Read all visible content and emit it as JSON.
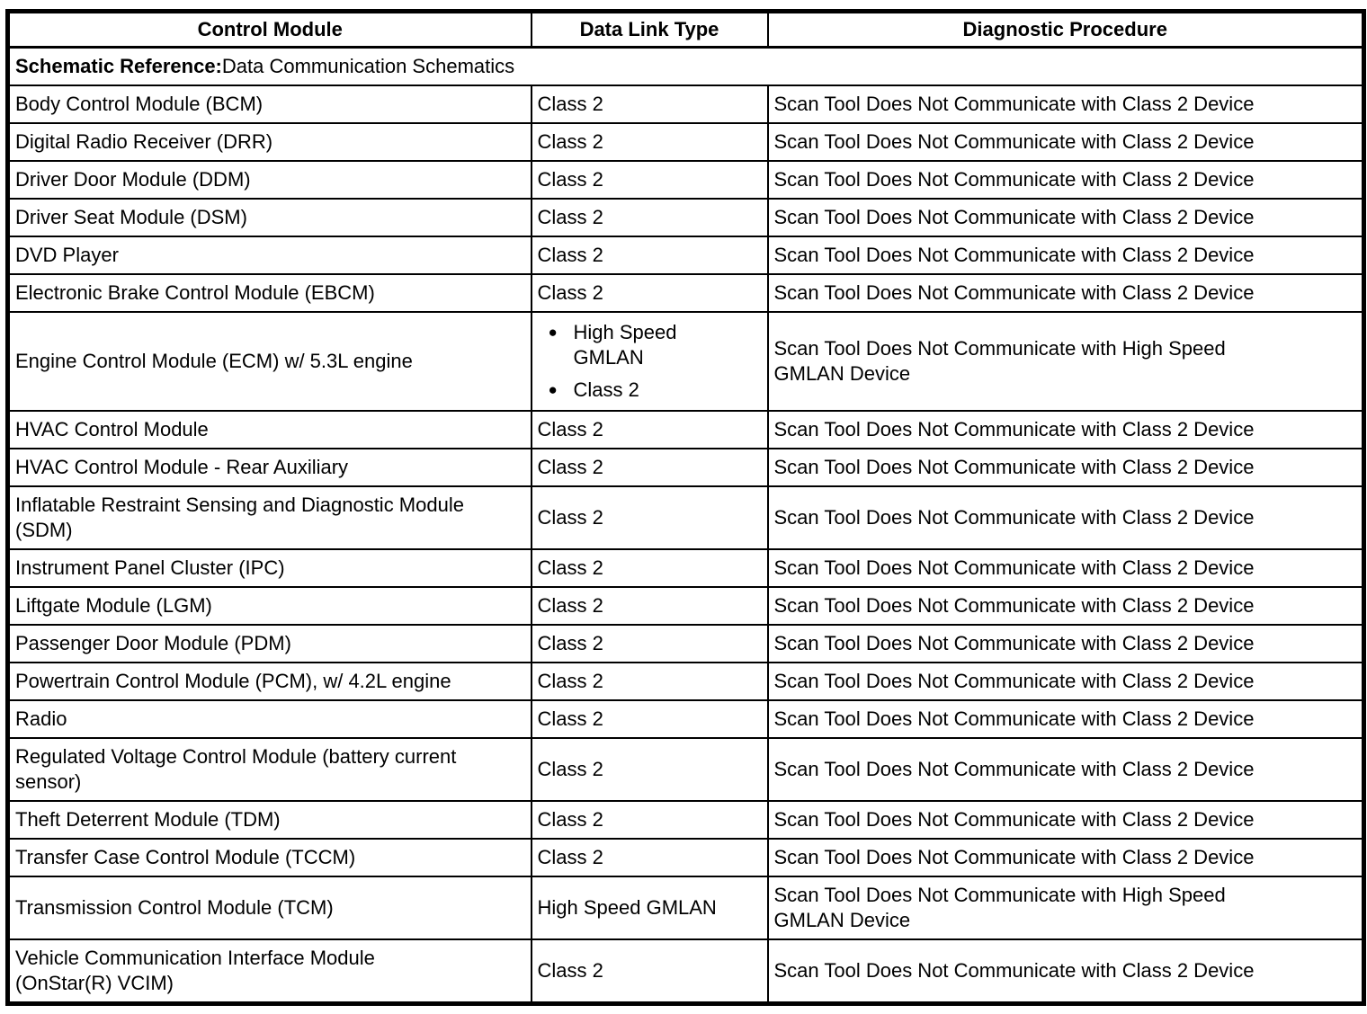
{
  "page": {
    "background_color": "#ffffff",
    "text_color": "#000000",
    "border_color": "#000000"
  },
  "table": {
    "headers": [
      "Control Module",
      "Data Link Type",
      "Diagnostic Procedure"
    ],
    "schematic_reference": {
      "label": "Schematic Reference:",
      "value": "Data Communication Schematics"
    },
    "rows": [
      {
        "module": "Body Control Module (BCM)",
        "data_link": [
          "Class 2"
        ],
        "procedure": "Scan Tool Does Not Communicate with Class 2 Device"
      },
      {
        "module": "Digital Radio Receiver (DRR)",
        "data_link": [
          "Class 2"
        ],
        "procedure": "Scan Tool Does Not Communicate with Class 2 Device"
      },
      {
        "module": "Driver Door Module (DDM)",
        "data_link": [
          "Class 2"
        ],
        "procedure": "Scan Tool Does Not Communicate with Class 2 Device"
      },
      {
        "module": "Driver Seat Module (DSM)",
        "data_link": [
          "Class 2"
        ],
        "procedure": "Scan Tool Does Not Communicate with Class 2 Device"
      },
      {
        "module": "DVD Player",
        "data_link": [
          "Class 2"
        ],
        "procedure": "Scan Tool Does Not Communicate with Class 2 Device"
      },
      {
        "module": "Electronic Brake Control Module (EBCM)",
        "data_link": [
          "Class 2"
        ],
        "procedure": "Scan Tool Does Not Communicate with Class 2 Device"
      },
      {
        "module": "Engine Control Module (ECM) w/ 5.3L engine",
        "data_link": [
          "High Speed\nGMLAN",
          "Class 2"
        ],
        "procedure": "Scan Tool Does Not Communicate with High Speed\nGMLAN Device"
      },
      {
        "module": "HVAC Control Module",
        "data_link": [
          "Class 2"
        ],
        "procedure": "Scan Tool Does Not Communicate with Class 2 Device"
      },
      {
        "module": "HVAC Control Module - Rear Auxiliary",
        "data_link": [
          "Class 2"
        ],
        "procedure": "Scan Tool Does Not Communicate with Class 2 Device"
      },
      {
        "module": "Inflatable Restraint Sensing and Diagnostic Module\n(SDM)",
        "data_link": [
          "Class 2"
        ],
        "procedure": "Scan Tool Does Not Communicate with Class 2 Device"
      },
      {
        "module": "Instrument Panel Cluster (IPC)",
        "data_link": [
          "Class 2"
        ],
        "procedure": "Scan Tool Does Not Communicate with Class 2 Device"
      },
      {
        "module": "Liftgate Module (LGM)",
        "data_link": [
          "Class 2"
        ],
        "procedure": "Scan Tool Does Not Communicate with Class 2 Device"
      },
      {
        "module": "Passenger Door Module (PDM)",
        "data_link": [
          "Class 2"
        ],
        "procedure": "Scan Tool Does Not Communicate with Class 2 Device"
      },
      {
        "module": "Powertrain Control Module (PCM), w/ 4.2L engine",
        "data_link": [
          "Class 2"
        ],
        "procedure": "Scan Tool Does Not Communicate with Class 2 Device"
      },
      {
        "module": "Radio",
        "data_link": [
          "Class 2"
        ],
        "procedure": "Scan Tool Does Not Communicate with Class 2 Device"
      },
      {
        "module": "Regulated Voltage Control Module (battery current\nsensor)",
        "data_link": [
          "Class 2"
        ],
        "procedure": "Scan Tool Does Not Communicate with Class 2 Device"
      },
      {
        "module": "Theft Deterrent Module (TDM)",
        "data_link": [
          "Class 2"
        ],
        "procedure": "Scan Tool Does Not Communicate with Class 2 Device"
      },
      {
        "module": "Transfer Case Control Module (TCCM)",
        "data_link": [
          "Class 2"
        ],
        "procedure": "Scan Tool Does Not Communicate with Class 2 Device"
      },
      {
        "module": "Transmission Control Module (TCM)",
        "data_link": [
          "High Speed GMLAN"
        ],
        "procedure": "Scan Tool Does Not Communicate with High Speed\nGMLAN Device"
      },
      {
        "module": "Vehicle Communication Interface Module\n(OnStar(R) VCIM)",
        "data_link": [
          "Class 2"
        ],
        "procedure": "Scan Tool Does Not Communicate with Class 2 Device"
      }
    ]
  }
}
